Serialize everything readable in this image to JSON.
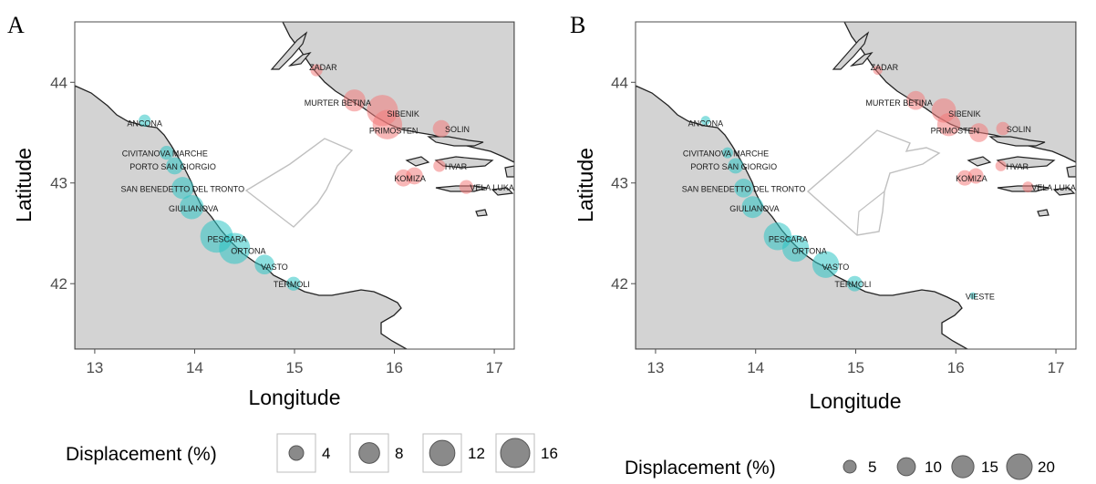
{
  "panels": [
    {
      "tag": "A",
      "xlabel": "Longitude",
      "ylabel": "Latitude",
      "xlim": [
        12.8,
        17.2
      ],
      "ylim": [
        41.35,
        44.6
      ],
      "xticks": [
        13,
        14,
        15,
        16,
        17
      ],
      "yticks": [
        42,
        43,
        44
      ],
      "ports": [
        {
          "name": "ZADAR",
          "lon": 15.22,
          "lat": 44.12,
          "size": 1.5,
          "side": "east"
        },
        {
          "name": "MURTER BETINA",
          "lon": 15.6,
          "lat": 43.82,
          "size": 5,
          "side": "east"
        },
        {
          "name": "SIBENIK",
          "lon": 15.88,
          "lat": 43.72,
          "size": 10,
          "side": "east"
        },
        {
          "name": "PRIMOSTEN",
          "lon": 15.93,
          "lat": 43.58,
          "size": 9,
          "side": "east"
        },
        {
          "name": "SOLIN",
          "lon": 16.47,
          "lat": 43.54,
          "size": 3,
          "side": "east"
        },
        {
          "name": "HVAR",
          "lon": 16.45,
          "lat": 43.17,
          "size": 1.5,
          "side": "east"
        },
        {
          "name": "KOMIZA",
          "lon": 16.09,
          "lat": 43.05,
          "size": 3,
          "side": "east"
        },
        {
          "name": "KOMIZA",
          "lon": 16.2,
          "lat": 43.07,
          "size": 3,
          "side": "east"
        },
        {
          "name": "VELA LUKA",
          "lon": 16.72,
          "lat": 42.96,
          "size": 2,
          "side": "east"
        },
        {
          "name": "ANCONA",
          "lon": 13.5,
          "lat": 43.62,
          "size": 1.5,
          "side": "west"
        },
        {
          "name": "CIVITANOVA MARCHE",
          "lon": 13.72,
          "lat": 43.3,
          "size": 2,
          "side": "west"
        },
        {
          "name": "PORTO SAN GIORGIO",
          "lon": 13.8,
          "lat": 43.17,
          "size": 3,
          "side": "west"
        },
        {
          "name": "SAN BENEDETTO DEL TRONTO",
          "lon": 13.88,
          "lat": 42.95,
          "size": 5,
          "side": "west"
        },
        {
          "name": "GIULIANOVA",
          "lon": 13.97,
          "lat": 42.76,
          "size": 6,
          "side": "west"
        },
        {
          "name": "PESCARA",
          "lon": 14.22,
          "lat": 42.47,
          "size": 11,
          "side": "west"
        },
        {
          "name": "ORTONA",
          "lon": 14.4,
          "lat": 42.35,
          "size": 10,
          "side": "west"
        },
        {
          "name": "VASTO",
          "lon": 14.7,
          "lat": 42.19,
          "size": 4,
          "side": "west"
        },
        {
          "name": "TERMOLI",
          "lon": 14.99,
          "lat": 42.0,
          "size": 2,
          "side": "west"
        }
      ],
      "legend": {
        "title": "Displacement (%)",
        "values": [
          4,
          8,
          12,
          16
        ],
        "boxed": true
      }
    },
    {
      "tag": "B",
      "xlabel": "Longitude",
      "ylabel": "Latitude",
      "xlim": [
        12.8,
        17.2
      ],
      "ylim": [
        41.35,
        44.6
      ],
      "xticks": [
        13,
        14,
        15,
        16,
        17
      ],
      "yticks": [
        42,
        43,
        44
      ],
      "ports": [
        {
          "name": "ZADAR",
          "lon": 15.22,
          "lat": 44.12,
          "size": 1.5,
          "side": "east"
        },
        {
          "name": "MURTER BETINA",
          "lon": 15.6,
          "lat": 43.82,
          "size": 6,
          "side": "east"
        },
        {
          "name": "SIBENIK",
          "lon": 15.88,
          "lat": 43.72,
          "size": 10,
          "side": "east"
        },
        {
          "name": "PRIMOSTEN",
          "lon": 15.93,
          "lat": 43.58,
          "size": 9,
          "side": "east"
        },
        {
          "name": "PRIMOSTEN",
          "lon": 16.23,
          "lat": 43.5,
          "size": 6,
          "side": "east"
        },
        {
          "name": "SOLIN",
          "lon": 16.47,
          "lat": 43.54,
          "size": 3,
          "side": "east"
        },
        {
          "name": "HVAR",
          "lon": 16.45,
          "lat": 43.17,
          "size": 2,
          "side": "east"
        },
        {
          "name": "KOMIZA",
          "lon": 16.09,
          "lat": 43.05,
          "size": 4,
          "side": "east"
        },
        {
          "name": "KOMIZA",
          "lon": 16.2,
          "lat": 43.07,
          "size": 4,
          "side": "east"
        },
        {
          "name": "VELA LUKA",
          "lon": 16.72,
          "lat": 42.96,
          "size": 2,
          "side": "east"
        },
        {
          "name": "ANCONA",
          "lon": 13.5,
          "lat": 43.62,
          "size": 1.5,
          "side": "west"
        },
        {
          "name": "CIVITANOVA MARCHE",
          "lon": 13.72,
          "lat": 43.3,
          "size": 2,
          "side": "west"
        },
        {
          "name": "PORTO SAN GIORGIO",
          "lon": 13.8,
          "lat": 43.17,
          "size": 4,
          "side": "west"
        },
        {
          "name": "SAN BENEDETTO DEL TRONTO",
          "lon": 13.88,
          "lat": 42.95,
          "size": 6,
          "side": "west"
        },
        {
          "name": "GIULIANOVA",
          "lon": 13.97,
          "lat": 42.76,
          "size": 8,
          "side": "west"
        },
        {
          "name": "PESCARA",
          "lon": 14.22,
          "lat": 42.47,
          "size": 13,
          "side": "west"
        },
        {
          "name": "ORTONA",
          "lon": 14.4,
          "lat": 42.35,
          "size": 12,
          "side": "west"
        },
        {
          "name": "VASTO",
          "lon": 14.7,
          "lat": 42.19,
          "size": 12,
          "side": "west"
        },
        {
          "name": "TERMOLI",
          "lon": 14.99,
          "lat": 42.0,
          "size": 4,
          "side": "west"
        },
        {
          "name": "VIESTE",
          "lon": 16.17,
          "lat": 41.88,
          "size": 0.8,
          "side": "west"
        }
      ],
      "legend": {
        "title": "Displacement (%)",
        "values": [
          5,
          10,
          15,
          20
        ],
        "boxed": false
      }
    }
  ],
  "colors": {
    "land": "#d3d3d3",
    "sea": "#ffffff",
    "west_ports": "#2ec4c4",
    "east_ports": "#f27c7c",
    "legend_circle": "#8a8a8a"
  }
}
